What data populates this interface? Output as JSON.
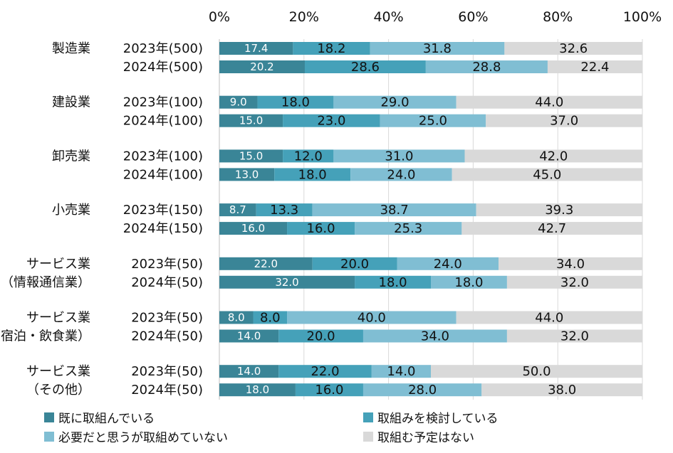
{
  "chart_data": {
    "type": "bar",
    "orientation": "horizontal-stacked-100",
    "xlim": [
      0,
      100
    ],
    "x_ticks": [
      "0%",
      "20%",
      "40%",
      "60%",
      "80%",
      "100%"
    ],
    "grid": true,
    "legend_placement": "bottom",
    "groups": [
      {
        "label_lines": [
          "製造業"
        ],
        "rows": [
          {
            "label": "2023年(500)",
            "values": [
              17.4,
              18.2,
              31.8,
              32.6
            ]
          },
          {
            "label": "2024年(500)",
            "values": [
              20.2,
              28.6,
              28.8,
              22.4
            ]
          }
        ]
      },
      {
        "label_lines": [
          "建設業"
        ],
        "rows": [
          {
            "label": "2023年(100)",
            "values": [
              9.0,
              18.0,
              29.0,
              44.0
            ]
          },
          {
            "label": "2024年(100)",
            "values": [
              15.0,
              23.0,
              25.0,
              37.0
            ]
          }
        ]
      },
      {
        "label_lines": [
          "卸売業"
        ],
        "rows": [
          {
            "label": "2023年(100)",
            "values": [
              15.0,
              12.0,
              31.0,
              42.0
            ]
          },
          {
            "label": "2024年(100)",
            "values": [
              13.0,
              18.0,
              24.0,
              45.0
            ]
          }
        ]
      },
      {
        "label_lines": [
          "小売業"
        ],
        "rows": [
          {
            "label": "2023年(150)",
            "values": [
              8.7,
              13.3,
              38.7,
              39.3
            ]
          },
          {
            "label": "2024年(150)",
            "values": [
              16.0,
              16.0,
              25.3,
              42.7
            ]
          }
        ]
      },
      {
        "label_lines": [
          "サービス業",
          "（情報通信業）"
        ],
        "rows": [
          {
            "label": "2023年(50)",
            "values": [
              22.0,
              20.0,
              24.0,
              34.0
            ]
          },
          {
            "label": "2024年(50)",
            "values": [
              32.0,
              18.0,
              18.0,
              32.0
            ]
          }
        ]
      },
      {
        "label_lines": [
          "サービス業",
          "（宿泊・飲食業）"
        ],
        "rows": [
          {
            "label": "2023年(50)",
            "values": [
              8.0,
              8.0,
              40.0,
              44.0
            ]
          },
          {
            "label": "2024年(50)",
            "values": [
              14.0,
              20.0,
              34.0,
              32.0
            ]
          }
        ]
      },
      {
        "label_lines": [
          "サービス業",
          "（その他）"
        ],
        "rows": [
          {
            "label": "2023年(50)",
            "values": [
              14.0,
              22.0,
              14.0,
              50.0
            ]
          },
          {
            "label": "2024年(50)",
            "values": [
              18.0,
              16.0,
              28.0,
              38.0
            ]
          }
        ]
      }
    ],
    "series": [
      {
        "name": "既に取組んでいる",
        "color": "#3a8597",
        "label_color": "#ffffff"
      },
      {
        "name": "取組みを検討している",
        "color": "#45a1b9",
        "label_color": "#111111"
      },
      {
        "name": "必要だと思うが取組めていない",
        "color": "#80bed3",
        "label_color": "#111111"
      },
      {
        "name": "取組む予定はない",
        "color": "#d9d9d9",
        "label_color": "#111111"
      }
    ]
  }
}
